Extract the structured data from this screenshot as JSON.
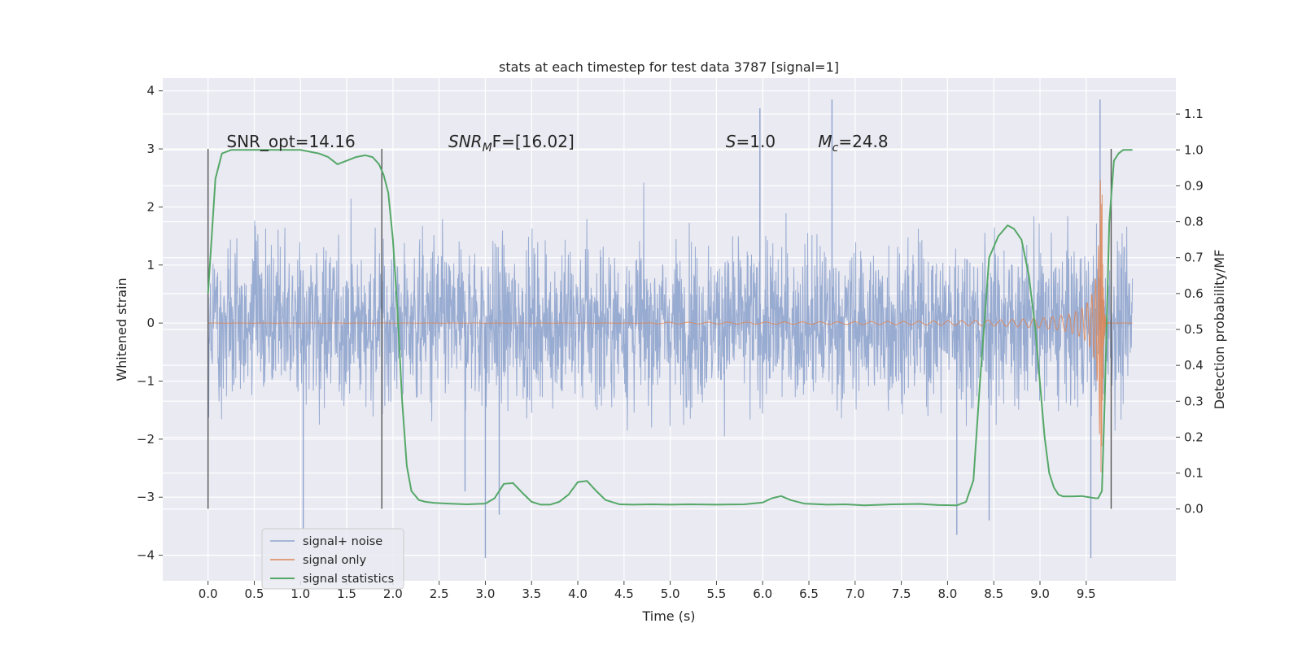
{
  "chart_data": {
    "type": "line",
    "title": "stats at each timestep for test data 3787 [signal=1]",
    "xlabel": "Time (s)",
    "ylabel_left": "Whitened strain",
    "ylabel_right": "Detection probability/MF",
    "xlim": [
      -0.49,
      10.47
    ],
    "ylim_left": [
      -4.44,
      4.22
    ],
    "ylim_right": [
      -0.2,
      1.2
    ],
    "x_ticks": [
      "0.0",
      "0.5",
      "1.0",
      "1.5",
      "2.0",
      "2.5",
      "3.0",
      "3.5",
      "4.0",
      "4.5",
      "5.0",
      "5.5",
      "6.0",
      "6.5",
      "7.0",
      "7.5",
      "8.0",
      "8.5",
      "9.0",
      "9.5"
    ],
    "x_tick_values": [
      0.0,
      0.5,
      1.0,
      1.5,
      2.0,
      2.5,
      3.0,
      3.5,
      4.0,
      4.5,
      5.0,
      5.5,
      6.0,
      6.5,
      7.0,
      7.5,
      8.0,
      8.5,
      9.0,
      9.5
    ],
    "y_ticks_left": [
      "4",
      "3",
      "2",
      "1",
      "0",
      "−1",
      "−2",
      "−3",
      "−4"
    ],
    "y_tick_values_left": [
      4,
      3,
      2,
      1,
      0,
      -1,
      -2,
      -3,
      -4
    ],
    "y_ticks_right": [
      "1.1",
      "1.0",
      "0.9",
      "0.8",
      "0.7",
      "0.6",
      "0.5",
      "0.4",
      "0.3",
      "0.2",
      "0.1",
      "0.0"
    ],
    "y_tick_values_right": [
      1.1,
      1.0,
      0.9,
      0.8,
      0.7,
      0.6,
      0.5,
      0.4,
      0.3,
      0.2,
      0.1,
      0.0
    ],
    "grid": true,
    "legend_position": "lower-left",
    "annotations": [
      {
        "prefix": "SNR_opt=14.16",
        "sub": "",
        "suffix": "",
        "x": 0.2,
        "y": 3.1
      },
      {
        "prefix": "SNR",
        "sub": "M",
        "suffix": "F=[16.02]",
        "x": 2.6,
        "y": 3.1,
        "italic_prefix": true
      },
      {
        "prefix": "S",
        "sub": "",
        "suffix": "=1.0",
        "x": 5.6,
        "y": 3.1,
        "italic_prefix": true
      },
      {
        "prefix": "M",
        "sub": "c",
        "suffix": "=24.8",
        "x": 6.6,
        "y": 3.1,
        "italic_prefix": true
      }
    ],
    "vlines": [
      0.0,
      1.88,
      9.77
    ],
    "vline_range": [
      -3.2,
      3.0
    ],
    "series": [
      {
        "name": "signal+ noise",
        "color": "#8fa4cd",
        "axis": "left",
        "duration": 10.0,
        "envelope": 1.75,
        "outliers": [
          {
            "x": 1.03,
            "y": -3.55
          },
          {
            "x": 2.78,
            "y": -2.9
          },
          {
            "x": 3.0,
            "y": -4.05
          },
          {
            "x": 3.15,
            "y": -3.3
          },
          {
            "x": 5.97,
            "y": 3.7
          },
          {
            "x": 6.75,
            "y": 3.85
          },
          {
            "x": 8.1,
            "y": -3.65
          },
          {
            "x": 8.45,
            "y": -3.4
          },
          {
            "x": 9.55,
            "y": -4.05
          },
          {
            "x": 9.65,
            "y": 3.85
          }
        ]
      },
      {
        "name": "signal only",
        "color": "#dd8452",
        "axis": "left",
        "duration": 10.0,
        "merger_time": 9.67,
        "peak_amplitude": 2.6
      },
      {
        "name": "signal statistics",
        "color": "#55a868",
        "axis": "right",
        "x": [
          0.0,
          0.08,
          0.15,
          0.25,
          0.4,
          0.6,
          0.8,
          1.0,
          1.2,
          1.3,
          1.4,
          1.5,
          1.6,
          1.7,
          1.78,
          1.85,
          1.9,
          1.95,
          2.0,
          2.05,
          2.1,
          2.15,
          2.2,
          2.28,
          2.35,
          2.45,
          2.6,
          2.8,
          3.0,
          3.1,
          3.2,
          3.3,
          3.4,
          3.5,
          3.6,
          3.7,
          3.8,
          3.9,
          4.0,
          4.1,
          4.2,
          4.3,
          4.45,
          4.6,
          4.8,
          5.0,
          5.2,
          5.5,
          5.8,
          6.0,
          6.1,
          6.2,
          6.3,
          6.45,
          6.7,
          6.9,
          7.1,
          7.4,
          7.7,
          7.9,
          8.1,
          8.2,
          8.28,
          8.35,
          8.45,
          8.55,
          8.65,
          8.72,
          8.8,
          8.88,
          8.95,
          9.0,
          9.05,
          9.1,
          9.15,
          9.2,
          9.25,
          9.35,
          9.45,
          9.55,
          9.6,
          9.63,
          9.67,
          9.7,
          9.75,
          9.8,
          9.85,
          9.9,
          9.95,
          10.0
        ],
        "values": [
          0.6,
          0.92,
          0.99,
          1.0,
          1.0,
          1.0,
          1.0,
          1.0,
          0.99,
          0.98,
          0.96,
          0.97,
          0.98,
          0.985,
          0.98,
          0.96,
          0.93,
          0.88,
          0.75,
          0.55,
          0.3,
          0.12,
          0.05,
          0.025,
          0.02,
          0.017,
          0.015,
          0.013,
          0.015,
          0.03,
          0.07,
          0.072,
          0.045,
          0.02,
          0.012,
          0.012,
          0.02,
          0.04,
          0.075,
          0.078,
          0.05,
          0.025,
          0.013,
          0.012,
          0.013,
          0.012,
          0.013,
          0.012,
          0.013,
          0.018,
          0.03,
          0.036,
          0.025,
          0.015,
          0.012,
          0.013,
          0.01,
          0.013,
          0.014,
          0.011,
          0.01,
          0.02,
          0.08,
          0.35,
          0.7,
          0.76,
          0.79,
          0.78,
          0.75,
          0.65,
          0.5,
          0.35,
          0.2,
          0.1,
          0.06,
          0.04,
          0.035,
          0.035,
          0.036,
          0.032,
          0.03,
          0.03,
          0.05,
          0.3,
          0.8,
          0.97,
          0.99,
          1.0,
          1.0,
          1.0
        ]
      }
    ]
  }
}
